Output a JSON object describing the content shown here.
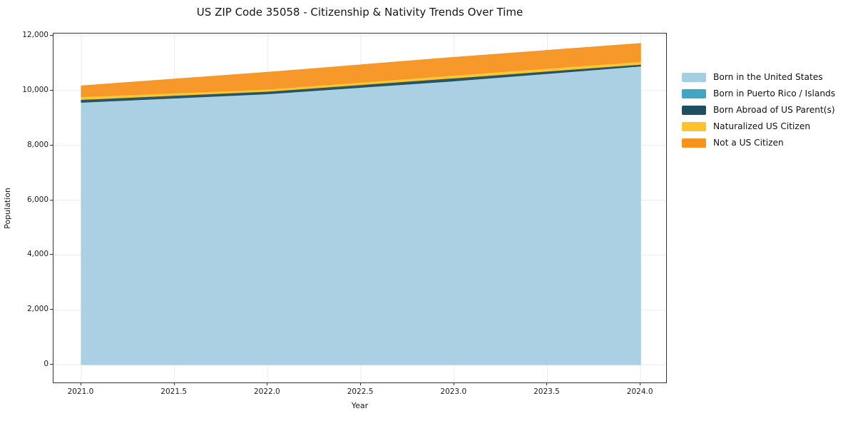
{
  "window": {
    "background": "#ffffff"
  },
  "chart": {
    "title": "US ZIP Code 35058 - Citizenship & Nativity Trends Over Time",
    "xlabel": "Year",
    "ylabel": "Population"
  },
  "chart_data": {
    "type": "area",
    "stacked": true,
    "title": "US ZIP Code 35058 - Citizenship & Nativity Trends Over Time",
    "xlabel": "Year",
    "ylabel": "Population",
    "grid": true,
    "grid_color": "#ebebeb",
    "spine_color": "#333333",
    "legend_position": "right-outside",
    "x": [
      2021,
      2022,
      2023,
      2024
    ],
    "series": [
      {
        "name": "Born in the United States",
        "color": "#a6cee3",
        "values": [
          9570,
          9880,
          10350,
          10890
        ]
      },
      {
        "name": "Born in Puerto Rico / Islands",
        "color": "#41a6c4",
        "values": [
          0,
          0,
          0,
          0
        ]
      },
      {
        "name": "Born Abroad of US Parent(s)",
        "color": "#1f4e5f",
        "values": [
          100,
          90,
          105,
          65
        ]
      },
      {
        "name": "Naturalized US Citizen",
        "color": "#fcc32e",
        "values": [
          105,
          80,
          105,
          105
        ]
      },
      {
        "name": "Not a US Citizen",
        "color": "#f7941f",
        "values": [
          395,
          615,
          650,
          655
        ]
      }
    ],
    "totals": [
      10170,
      10665,
      11210,
      11715
    ],
    "xlim": [
      2020.851,
      2024.137
    ],
    "ylim": [
      -648,
      12078
    ],
    "x_ticks": [
      2021.0,
      2021.5,
      2022.0,
      2022.5,
      2023.0,
      2023.5,
      2024.0
    ],
    "x_tick_labels": [
      "2021.0",
      "2021.5",
      "2022.0",
      "2022.5",
      "2023.0",
      "2023.5",
      "2024.0"
    ],
    "y_ticks": [
      0,
      2000,
      4000,
      6000,
      8000,
      10000,
      12000
    ],
    "y_tick_labels": [
      "0",
      "2,000",
      "4,000",
      "6,000",
      "8,000",
      "10,000",
      "12,000"
    ]
  }
}
